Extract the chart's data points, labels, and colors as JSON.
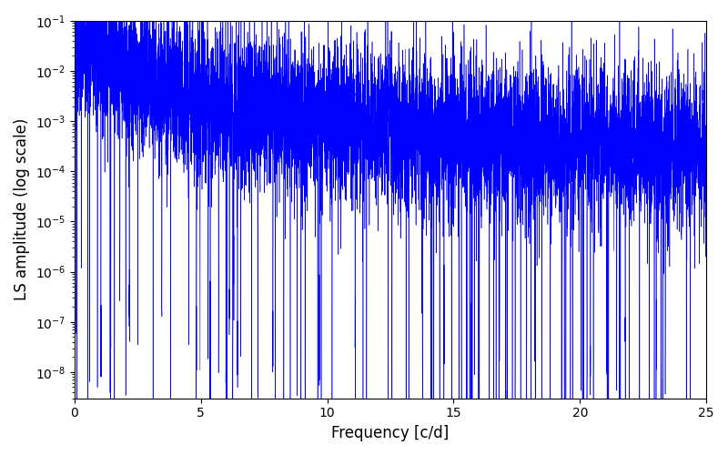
{
  "title": "",
  "xlabel": "Frequency [c/d]",
  "ylabel": "LS amplitude (log scale)",
  "xlim": [
    0,
    25
  ],
  "ylim": [
    3e-09,
    0.1
  ],
  "xticks": [
    0,
    5,
    10,
    15,
    20,
    25
  ],
  "line_color": "blue",
  "background_color": "#ffffff",
  "figsize": [
    8.0,
    5.0
  ],
  "dpi": 100,
  "seed": 7,
  "n_points": 8000,
  "freq_max": 25.0,
  "alpha": 1.5,
  "base_amp": 0.035,
  "noise_scale": 1.8
}
